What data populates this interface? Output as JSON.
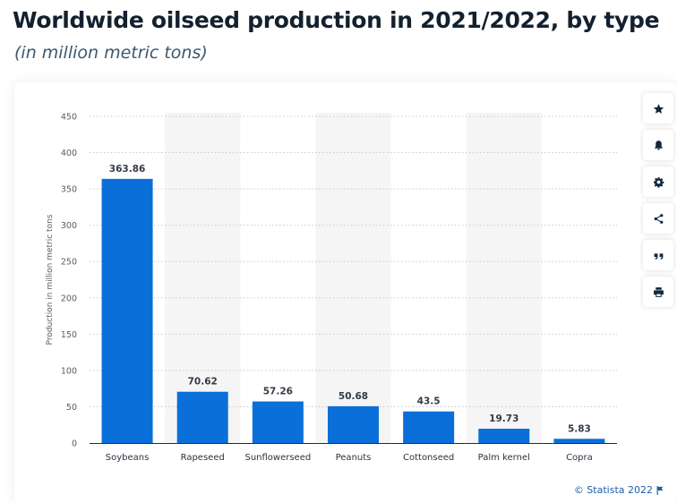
{
  "header": {
    "title": "Worldwide oilseed production in 2021/2022, by type",
    "subtitle": "(in million metric tons)"
  },
  "toolbar": {
    "items": [
      {
        "name": "favorite",
        "icon": "star-icon"
      },
      {
        "name": "notification",
        "icon": "bell-icon"
      },
      {
        "name": "settings",
        "icon": "gear-icon"
      },
      {
        "name": "share",
        "icon": "share-icon"
      },
      {
        "name": "cite",
        "icon": "quote-icon"
      },
      {
        "name": "print",
        "icon": "printer-icon"
      }
    ]
  },
  "footer": {
    "copyright": "© Statista 2022"
  },
  "colors": {
    "bar": "#0a6fd9",
    "band": "#f5f5f5",
    "grid": "#c9c9c9"
  },
  "chart_data": {
    "type": "bar",
    "categories": [
      "Soybeans",
      "Rapeseed",
      "Sunflowerseed",
      "Peanuts",
      "Cottonseed",
      "Palm kernel",
      "Copra"
    ],
    "values": [
      363.86,
      70.62,
      57.26,
      50.68,
      43.5,
      19.73,
      5.83
    ],
    "value_labels": [
      "363.86",
      "70.62",
      "57.26",
      "50.68",
      "43.5",
      "19.73",
      "5.83"
    ],
    "ylabel": "Production in million metric tons",
    "ylim": [
      0,
      450
    ],
    "yticks": [
      0,
      50,
      100,
      150,
      200,
      250,
      300,
      350,
      400,
      450
    ],
    "grid": true,
    "legend": "none"
  }
}
